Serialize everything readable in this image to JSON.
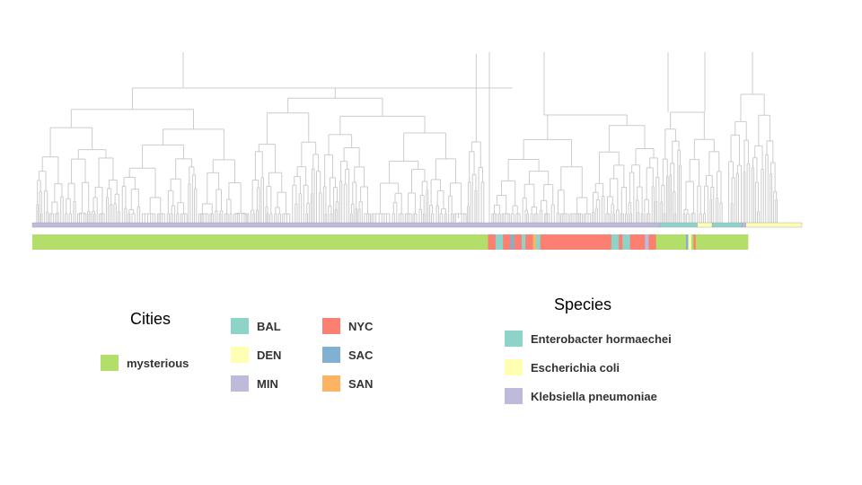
{
  "legends": {
    "cities": {
      "title": "Cities",
      "mysterious": {
        "label": "mysterious",
        "color": "#b3de69"
      },
      "items": [
        {
          "label": "BAL",
          "color": "#8dd3c7"
        },
        {
          "label": "DEN",
          "color": "#ffffb3"
        },
        {
          "label": "MIN",
          "color": "#bebada"
        },
        {
          "label": "NYC",
          "color": "#fb8072"
        },
        {
          "label": "SAC",
          "color": "#80b1d3"
        },
        {
          "label": "SAN",
          "color": "#fdb462"
        }
      ]
    },
    "species": {
      "title": "Species",
      "items": [
        {
          "label": "Enterobacter hormaechei",
          "color": "#8dd3c7"
        },
        {
          "label": "Escherichia coli",
          "color": "#ffffb3"
        },
        {
          "label": "Klebsiella pneumoniae",
          "color": "#bebada"
        }
      ]
    }
  },
  "tree": {
    "branch_color": "#cccccc",
    "city_strip": [
      {
        "city": "mysterious",
        "share": 0.61
      },
      {
        "city": "NYC",
        "share": 0.01
      },
      {
        "city": "BAL",
        "share": 0.01
      },
      {
        "city": "NYC",
        "share": 0.01
      },
      {
        "city": "SAC",
        "share": 0.005
      },
      {
        "city": "NYC",
        "share": 0.01
      },
      {
        "city": "BAL",
        "share": 0.005
      },
      {
        "city": "NYC",
        "share": 0.01
      },
      {
        "city": "SAN",
        "share": 0.004
      },
      {
        "city": "BAL",
        "share": 0.006
      },
      {
        "city": "NYC",
        "share": 0.095
      },
      {
        "city": "BAL",
        "share": 0.01
      },
      {
        "city": "NYC",
        "share": 0.005
      },
      {
        "city": "BAL",
        "share": 0.01
      },
      {
        "city": "NYC",
        "share": 0.02
      },
      {
        "city": "MIN",
        "share": 0.005
      },
      {
        "city": "NYC",
        "share": 0.01
      },
      {
        "city": "mysterious",
        "share": 0.04
      },
      {
        "city": "SAC",
        "share": 0.003
      },
      {
        "city": "DEN",
        "share": 0.004
      },
      {
        "city": "mysterious",
        "share": 0.003
      },
      {
        "city": "NYC",
        "share": 0.003
      },
      {
        "city": "mysterious",
        "share": 0.07
      }
    ],
    "species_strip": [
      {
        "species": "Klebsiella pneumoniae",
        "share": 0.84
      },
      {
        "species": "Enterobacter hormaechei",
        "share": 0.05
      },
      {
        "species": "Escherichia coli",
        "share": 0.02
      },
      {
        "species": "Enterobacter hormaechei",
        "share": 0.04
      },
      {
        "species": "Klebsiella pneumoniae",
        "share": 0.005
      },
      {
        "species": "Escherichia coli",
        "share": 0.075
      }
    ]
  }
}
